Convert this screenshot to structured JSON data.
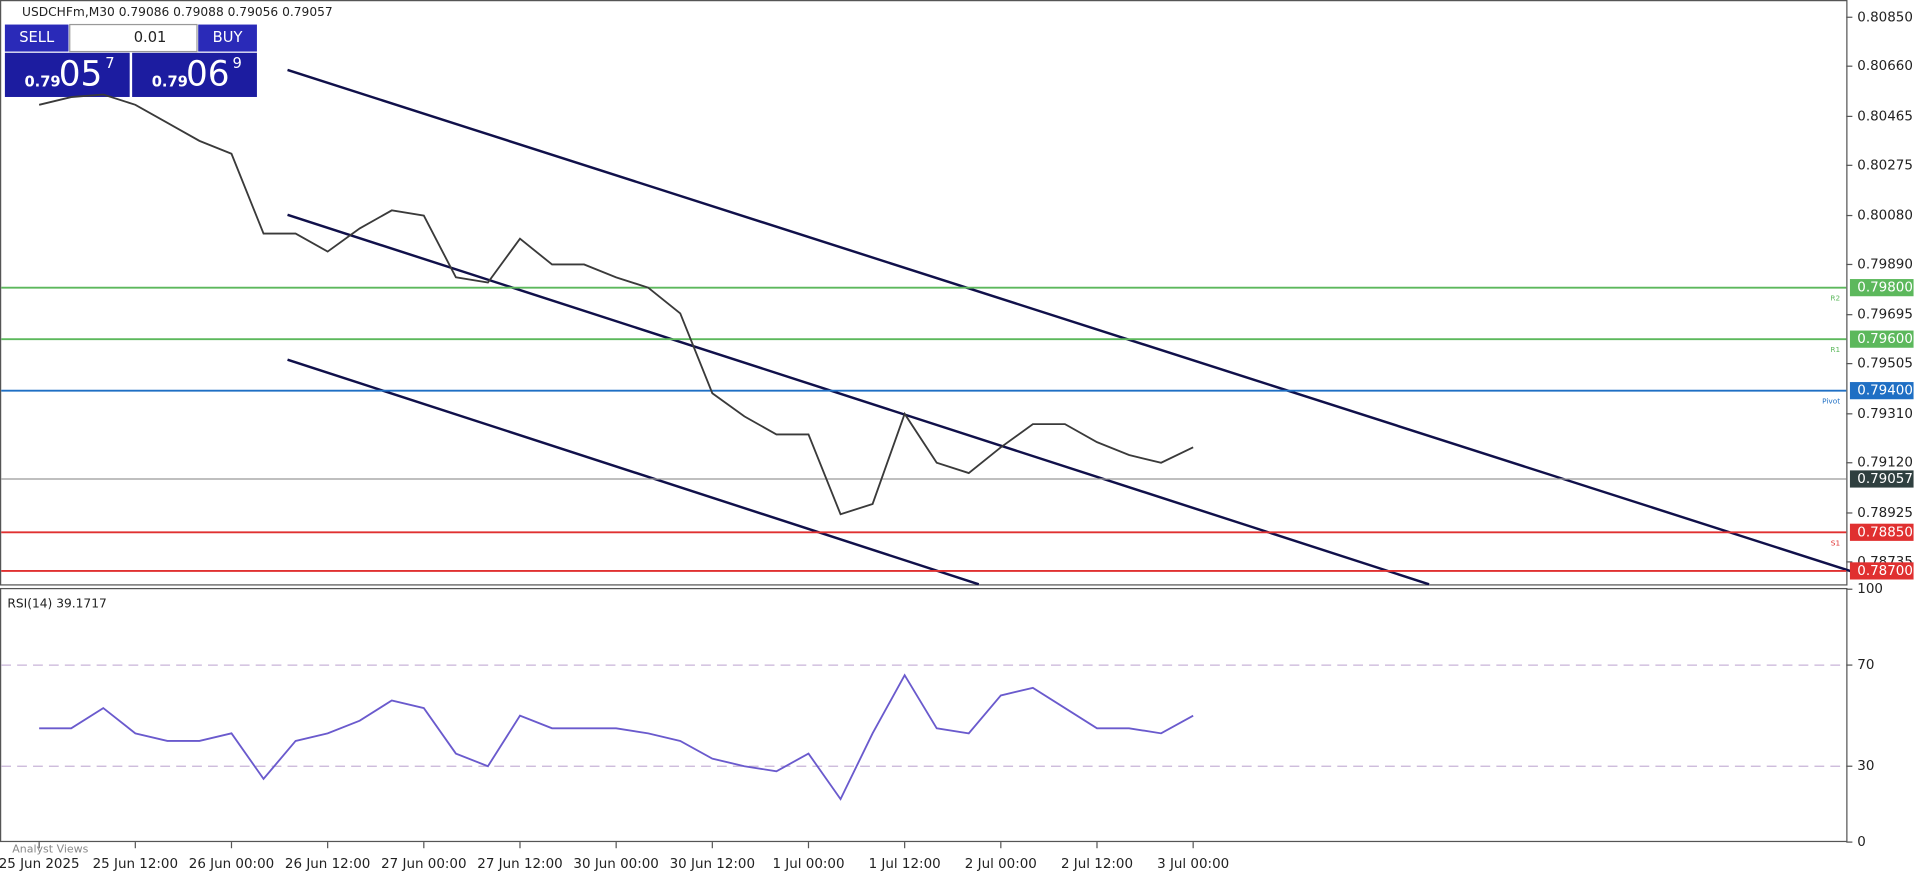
{
  "header": {
    "symbol": "USDCHFm,M30 0.79086 0.79088 0.79056 0.79057",
    "footer": "Analyst Views"
  },
  "trade_panel": {
    "sell": "SELL",
    "buy": "BUY",
    "lot": "0.01",
    "sell_big": "0.79",
    "sell_mid": "05",
    "sell_sup": "7",
    "buy_big": "0.79",
    "buy_mid": "06",
    "buy_sup": "9"
  },
  "chart_data": [
    {
      "type": "line",
      "title": "USDCHFm,M30",
      "color": "#3a3a3a",
      "x": [
        "25 Jun 2025",
        null,
        null,
        "25 Jun 12:00",
        null,
        null,
        "26 Jun 00:00",
        null,
        null,
        "26 Jun 12:00",
        null,
        null,
        "27 Jun 00:00",
        null,
        null,
        "27 Jun 12:00",
        null,
        null,
        "30 Jun 00:00",
        null,
        null,
        "30 Jun 12:00",
        null,
        null,
        "1 Jul 00:00",
        null,
        null,
        "1 Jul 12:00",
        null,
        null,
        "2 Jul 00:00",
        null,
        null,
        "2 Jul 12:00",
        null,
        null,
        "3 Jul 00:00"
      ],
      "values": [
        0.8051,
        0.8054,
        0.8055,
        0.8051,
        0.8044,
        0.8037,
        0.8032,
        0.8001,
        0.8001,
        0.7994,
        0.8003,
        0.801,
        0.8008,
        0.7984,
        0.7982,
        0.7999,
        0.7989,
        0.7989,
        0.7984,
        0.798,
        0.797,
        0.7939,
        0.793,
        0.7923,
        0.7923,
        0.7892,
        0.7896,
        0.7931,
        0.7912,
        0.7908,
        0.7918,
        0.7927,
        0.7927,
        0.792,
        0.7915,
        0.7912,
        0.7918
      ],
      "ylim": [
        0.78648,
        0.80917
      ],
      "yticks": [
        {
          "value": 0.8085,
          "label": "0.80850"
        },
        {
          "value": 0.8066,
          "label": "0.80660"
        },
        {
          "value": 0.80465,
          "label": "0.80465"
        },
        {
          "value": 0.80275,
          "label": "0.80275"
        },
        {
          "value": 0.8008,
          "label": "0.80080"
        },
        {
          "value": 0.7989,
          "label": "0.79890"
        },
        {
          "value": 0.79695,
          "label": "0.79695"
        },
        {
          "value": 0.79505,
          "label": "0.79505"
        },
        {
          "value": 0.7931,
          "label": "0.79310"
        },
        {
          "value": 0.7912,
          "label": "0.79120"
        },
        {
          "value": 0.78925,
          "label": "0.78925"
        },
        {
          "value": 0.78735,
          "label": "0.78735"
        }
      ],
      "levels": [
        {
          "value": 0.798,
          "label": "0.79800",
          "name": "R2",
          "color": "#5cb85c"
        },
        {
          "value": 0.796,
          "label": "0.79600",
          "name": "R1",
          "color": "#5cb85c"
        },
        {
          "value": 0.794,
          "label": "0.79400",
          "name": "Pivot",
          "color": "#1f6fc4"
        },
        {
          "value": 0.7885,
          "label": "0.78850",
          "name": "S1",
          "color": "#e03030"
        },
        {
          "value": 0.787,
          "label": "0.78700",
          "color": "#e03030"
        }
      ],
      "last": {
        "value": 0.79057,
        "label": "0.79057",
        "color": "#2f3f3f"
      }
    },
    {
      "type": "line",
      "title": "RSI(14) 39.1717",
      "color": "#6a5acd",
      "values": [
        45,
        45,
        53,
        43,
        40,
        40,
        43,
        25,
        40,
        43,
        48,
        56,
        53,
        35,
        30,
        50,
        45,
        45,
        45,
        43,
        40,
        33,
        30,
        28,
        35,
        17,
        43,
        66,
        45,
        43,
        58,
        61,
        53,
        45,
        45,
        43,
        50
      ],
      "ylim": [
        0,
        100
      ],
      "yticks": [
        0,
        30,
        70,
        100
      ],
      "grid": true
    }
  ]
}
